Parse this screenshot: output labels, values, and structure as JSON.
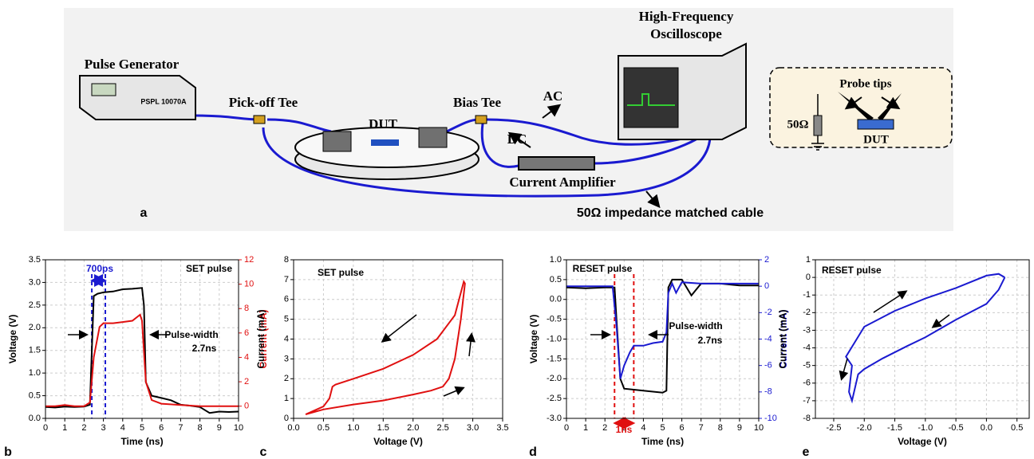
{
  "diagram": {
    "labels": {
      "pulse_generator": "Pulse Generator",
      "generator_model": "PSPL 10070A",
      "pickoff_tee": "Pick-off Tee",
      "dut": "DUT",
      "bias_tee": "Bias Tee",
      "ac": "AC",
      "dc": "DC",
      "oscilloscope_line1": "High-Frequency",
      "oscilloscope_line2": "Oscilloscope",
      "current_amplifier": "Current Amplifier",
      "cable": "50Ω impedance matched cable",
      "probe_tips": "Probe tips",
      "resistor": "50Ω",
      "inset_dut": "DUT",
      "panel": "a"
    }
  },
  "chart_data": [
    {
      "type": "line",
      "panel": "b",
      "xlabel": "Time (ns)",
      "ylabel": "Voltage (V)",
      "y2label": "Current (mA)",
      "y2color": "#e01010",
      "grid": true,
      "xlim": [
        0,
        10
      ],
      "xticks": [
        0,
        1,
        2,
        3,
        4,
        5,
        6,
        7,
        8,
        9,
        10
      ],
      "ylim": [
        0,
        3.5
      ],
      "yticks": [
        {
          "value": 0,
          "label": "0.0"
        },
        0.5,
        {
          "value": 1,
          "label": "1.0"
        },
        1.5,
        {
          "value": 2,
          "label": "2.0"
        },
        2.5,
        {
          "value": 3,
          "label": "3.0"
        },
        3.5
      ],
      "y2lim": [
        -1,
        12
      ],
      "y2ticks": [
        0,
        2,
        4,
        6,
        8,
        10,
        12
      ],
      "vlines": [
        2.4,
        3.1
      ],
      "vline_color": "#1a1ad0",
      "annotations": [
        {
          "text": "700ps",
          "color": "#1a1ad0"
        },
        {
          "text": "SET pulse",
          "color": "#000000"
        },
        {
          "text": "Pulse-width",
          "color": "#000000"
        },
        {
          "text": "2.7ns",
          "color": "#000000"
        }
      ],
      "series": [
        {
          "color": "#000000",
          "x": [
            0,
            0.5,
            1,
            1.5,
            2,
            2.3,
            2.4,
            2.5,
            2.7,
            3,
            3.5,
            4,
            4.5,
            5,
            5.1,
            5.2,
            5.5,
            6,
            6.5,
            7,
            7.5,
            8,
            8.5,
            9,
            9.5,
            10
          ],
          "values": [
            0.25,
            0.24,
            0.26,
            0.25,
            0.26,
            0.3,
            1.5,
            2.7,
            2.75,
            2.78,
            2.8,
            2.85,
            2.86,
            2.88,
            2.5,
            0.8,
            0.5,
            0.45,
            0.4,
            0.3,
            0.28,
            0.25,
            0.12,
            0.15,
            0.14,
            0.15
          ]
        },
        {
          "color": "#e01010",
          "axis": "y2",
          "x": [
            0,
            0.5,
            1,
            1.5,
            2,
            2.3,
            2.5,
            2.8,
            3,
            3.5,
            4,
            4.5,
            4.9,
            5,
            5.2,
            5.5,
            6,
            7,
            8,
            9,
            10
          ],
          "values": [
            0,
            0,
            0.1,
            0,
            0,
            0.3,
            4,
            6.5,
            6.8,
            6.8,
            6.9,
            7,
            7.5,
            7,
            2,
            0.5,
            0.2,
            0.1,
            0,
            0,
            0
          ]
        }
      ]
    },
    {
      "type": "line",
      "panel": "c",
      "xlabel": "Voltage (V)",
      "ylabel": "Current (mA)",
      "grid": true,
      "xlim": [
        0,
        3.5
      ],
      "xticks": [
        {
          "value": 0,
          "label": "0.0"
        },
        0.5,
        {
          "value": 1,
          "label": "1.0"
        },
        1.5,
        {
          "value": 2,
          "label": "2.0"
        },
        2.5,
        {
          "value": 3,
          "label": "3.0"
        },
        3.5
      ],
      "ylim": [
        0,
        8
      ],
      "yticks": [
        0,
        1,
        2,
        3,
        4,
        5,
        6,
        7,
        8
      ],
      "annotations": [
        {
          "text": "SET pulse",
          "color": "#000000"
        }
      ],
      "series": [
        {
          "color": "#e01010",
          "x": [
            0.2,
            0.5,
            0.6,
            0.65,
            0.7,
            1.0,
            1.5,
            2.0,
            2.4,
            2.7,
            2.85,
            2.87,
            2.8,
            2.7,
            2.6,
            2.5,
            2.3,
            2.0,
            1.5,
            1.0,
            0.5,
            0.2
          ],
          "values": [
            0.2,
            0.6,
            1.0,
            1.6,
            1.7,
            2.0,
            2.5,
            3.2,
            4.0,
            5.2,
            6.9,
            6.8,
            5.0,
            3.0,
            2.0,
            1.6,
            1.4,
            1.2,
            0.9,
            0.7,
            0.45,
            0.2
          ]
        }
      ]
    },
    {
      "type": "line",
      "panel": "d",
      "xlabel": "Time (ns)",
      "ylabel": "Voltage (V)",
      "y2label": "Current (mA)",
      "y2color": "#1a1ad0",
      "grid": true,
      "xlim": [
        0,
        10
      ],
      "xticks": [
        0,
        1,
        2,
        3,
        4,
        5,
        6,
        7,
        8,
        9,
        10
      ],
      "ylim": [
        -3,
        1
      ],
      "yticks": [
        {
          "value": 1,
          "label": "1.0"
        },
        0.5,
        {
          "value": 0,
          "label": "0.0"
        },
        -0.5,
        {
          "value": -1,
          "label": "-1.0"
        },
        -1.5,
        {
          "value": -2,
          "label": "-2.0"
        },
        -2.5,
        {
          "value": -3,
          "label": "-3.0"
        }
      ],
      "y2lim": [
        -10,
        2
      ],
      "y2ticks": [
        -10,
        -8,
        -6,
        -4,
        -2,
        0,
        2
      ],
      "vlines": [
        2.5,
        3.5
      ],
      "vline_color": "#e01010",
      "annotations": [
        {
          "text": "RESET pulse",
          "color": "#000000"
        },
        {
          "text": "Pulse-width",
          "color": "#000000"
        },
        {
          "text": "2.7ns",
          "color": "#000000"
        },
        {
          "text": "1ns",
          "color": "#e01010"
        }
      ],
      "series": [
        {
          "color": "#000000",
          "x": [
            0,
            1,
            2,
            2.5,
            2.6,
            2.8,
            3,
            4,
            5,
            5.2,
            5.3,
            5.5,
            6,
            6.5,
            7,
            8,
            9,
            10
          ],
          "values": [
            0.3,
            0.28,
            0.3,
            0.3,
            -0.5,
            -2.0,
            -2.25,
            -2.3,
            -2.35,
            -2.3,
            0.3,
            0.5,
            0.5,
            0.1,
            0.4,
            0.4,
            0.35,
            0.35
          ]
        },
        {
          "color": "#1a1ad0",
          "axis": "y2",
          "x": [
            0,
            1,
            2,
            2.4,
            2.6,
            2.8,
            3,
            3.3,
            3.5,
            4,
            4.5,
            5,
            5.2,
            5.3,
            5.5,
            5.7,
            6,
            7,
            8,
            10
          ],
          "values": [
            0,
            0,
            0,
            0,
            -3,
            -7,
            -6,
            -5,
            -4.5,
            -4.5,
            -4.3,
            -4.2,
            -3.5,
            -0.5,
            0.2,
            -0.5,
            0.3,
            0.2,
            0.2,
            0.2
          ]
        }
      ]
    },
    {
      "type": "line",
      "panel": "e",
      "xlabel": "Voltage (V)",
      "ylabel": "Current (mA)",
      "grid": true,
      "xlim": [
        -2.8,
        0.7
      ],
      "xticks": [
        -2.5,
        {
          "value": -2,
          "label": "-2.0"
        },
        -1.5,
        {
          "value": -1,
          "label": "-1.0"
        },
        -0.5,
        {
          "value": 0,
          "label": "0.0"
        },
        0.5
      ],
      "ylim": [
        -8,
        1
      ],
      "yticks": [
        -8,
        -7,
        -6,
        -5,
        -4,
        -3,
        -2,
        -1,
        0,
        1
      ],
      "annotations": [
        {
          "text": "RESET pulse",
          "color": "#000000"
        }
      ],
      "series": [
        {
          "color": "#1a1ad0",
          "x": [
            0.3,
            0.2,
            0,
            -0.5,
            -1,
            -1.5,
            -2,
            -2.3,
            -2.2,
            -2.25,
            -2.2,
            -2.1,
            -2,
            -1.7,
            -1.3,
            -1,
            -0.5,
            0,
            0.2,
            0.3
          ],
          "values": [
            0,
            0.2,
            0.1,
            -0.6,
            -1.2,
            -1.9,
            -2.8,
            -4.5,
            -5,
            -6.5,
            -7,
            -5.5,
            -5.2,
            -4.6,
            -3.9,
            -3.4,
            -2.4,
            -1.5,
            -0.7,
            0
          ]
        }
      ]
    }
  ]
}
